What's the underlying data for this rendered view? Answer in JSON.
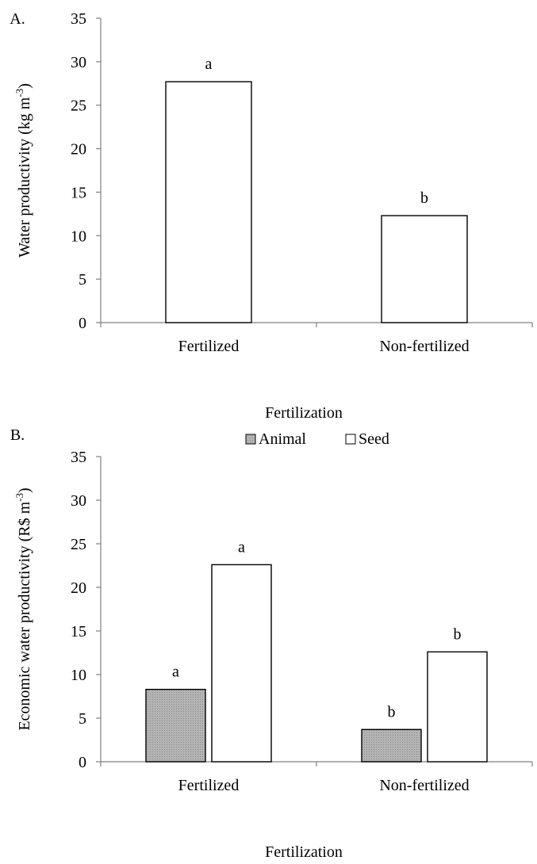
{
  "chart_data": [
    {
      "type": "bar",
      "panel_label": "A.",
      "categories": [
        "Fertilized",
        "Non-fertilized"
      ],
      "series": [
        {
          "values": [
            27.7,
            12.3
          ],
          "letters": [
            "a",
            "b"
          ],
          "color": "#ffffff"
        }
      ],
      "ylabel": "Water  productivity  (kg m",
      "ylabel_sup": "-3",
      "ylabel_end": ")",
      "xlabel": "Fertilization",
      "ylim": [
        0,
        35
      ],
      "yticks": [
        0,
        5,
        10,
        15,
        20,
        25,
        30,
        35
      ],
      "grid": false,
      "legend": null
    },
    {
      "type": "bar",
      "panel_label": "B.",
      "categories": [
        "Fertilized",
        "Non-fertilized"
      ],
      "series": [
        {
          "name": "Animal",
          "values": [
            8.3,
            3.7
          ],
          "letters": [
            "a",
            "b"
          ],
          "color": "#a6a6a6"
        },
        {
          "name": "Seed",
          "values": [
            22.6,
            12.6
          ],
          "letters": [
            "a",
            "b"
          ],
          "color": "#ffffff"
        }
      ],
      "ylabel": "Economic  water  productivity (R$ m",
      "ylabel_sup": "-3",
      "ylabel_end": ")",
      "xlabel": "Fertilization",
      "ylim": [
        0,
        35
      ],
      "yticks": [
        0,
        5,
        10,
        15,
        20,
        25,
        30,
        35
      ],
      "grid": false,
      "legend": "top-center"
    }
  ]
}
